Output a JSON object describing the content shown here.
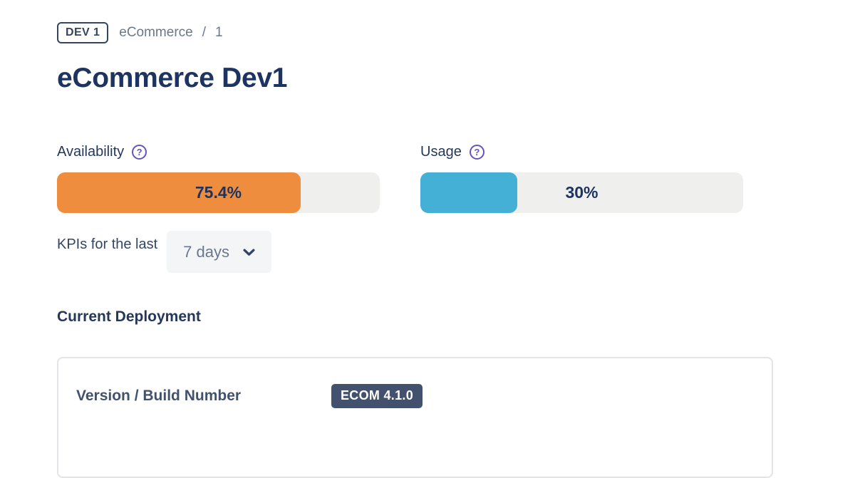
{
  "colors": {
    "availability_fill": "#EF8D3F",
    "usage_fill": "#44B0D5",
    "track": "#EFEFED",
    "version_badge_bg": "#42526E",
    "help_icon_purple": "#6554C0",
    "title_navy": "#1D3461"
  },
  "icons": {
    "help": "?"
  },
  "breadcrumb": {
    "env_badge": "DEV 1",
    "application": "eCommerce",
    "separator": "/",
    "environment_id": "1"
  },
  "page": {
    "title": "eCommerce Dev1"
  },
  "kpis": {
    "availability": {
      "label": "Availability",
      "value": "75.4%",
      "percent": 75.4
    },
    "usage": {
      "label": "Usage",
      "value": "30%",
      "percent": 30
    },
    "period": {
      "prefix": "KPIs for the last",
      "selected": "7 days"
    }
  },
  "deployment": {
    "section_title": "Current Deployment",
    "fields": [
      {
        "label": "Version / Build Number",
        "value": "ECOM 4.1.0"
      }
    ]
  }
}
